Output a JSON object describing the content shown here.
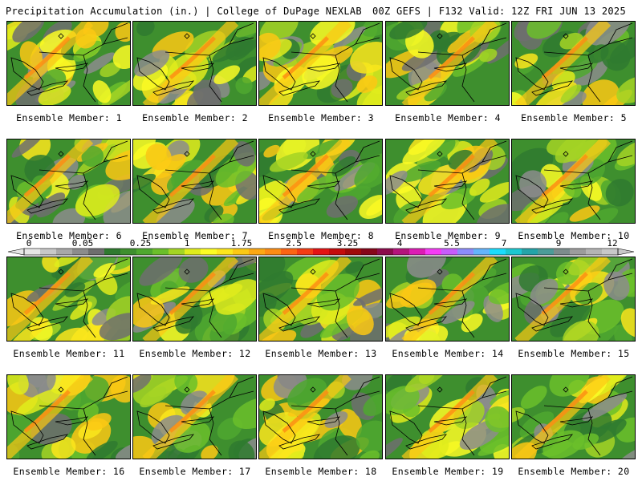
{
  "header": {
    "left_title": "Precipitation Accumulation (in.) | College of DuPage NEXLAB",
    "right_title": "00Z GEFS | F132 Valid: 12Z FRI JUN 13 2025"
  },
  "members": [
    {
      "label": "Ensemble Member: 1"
    },
    {
      "label": "Ensemble Member: 2"
    },
    {
      "label": "Ensemble Member: 3"
    },
    {
      "label": "Ensemble Member: 4"
    },
    {
      "label": "Ensemble Member: 5"
    },
    {
      "label": "Ensemble Member: 6"
    },
    {
      "label": "Ensemble Member: 7"
    },
    {
      "label": "Ensemble Member: 8"
    },
    {
      "label": "Ensemble Member: 9"
    },
    {
      "label": "Ensemble Member: 10"
    },
    {
      "label": "Ensemble Member: 11"
    },
    {
      "label": "Ensemble Member: 12"
    },
    {
      "label": "Ensemble Member: 13"
    },
    {
      "label": "Ensemble Member: 14"
    },
    {
      "label": "Ensemble Member: 15"
    },
    {
      "label": "Ensemble Member: 16"
    },
    {
      "label": "Ensemble Member: 17"
    },
    {
      "label": "Ensemble Member: 18"
    },
    {
      "label": "Ensemble Member: 19"
    },
    {
      "label": "Ensemble Member: 20"
    }
  ],
  "colorbar": {
    "tick_labels": [
      "0",
      "0.05",
      "0.25",
      "1",
      "1.75",
      "2.5",
      "3.25",
      "4",
      "5.5",
      "7",
      "9",
      "12"
    ],
    "colors": [
      "#e6e6e6",
      "#c8c8c8",
      "#a8a8a8",
      "#8c8c8c",
      "#6e6e6e",
      "#2f7a2f",
      "#3e8f2e",
      "#4fa82f",
      "#6bbf2a",
      "#a4d424",
      "#e0ec1c",
      "#fcfc24",
      "#fce61c",
      "#fcc814",
      "#fca814",
      "#fc8c14",
      "#fc6414",
      "#f43c14",
      "#e41414",
      "#c40c0c",
      "#a00a0a",
      "#86061a",
      "#8c0c4c",
      "#b4147c",
      "#dc1cb4",
      "#f43cf4",
      "#c85cfc",
      "#8c8cfc",
      "#64b4fc",
      "#1cdcfc",
      "#1cc8d0",
      "#24a4a8",
      "#4c9c98",
      "#7c8c8c",
      "#9c9c9c",
      "#b4b4b4",
      "#c8c8c8"
    ]
  }
}
